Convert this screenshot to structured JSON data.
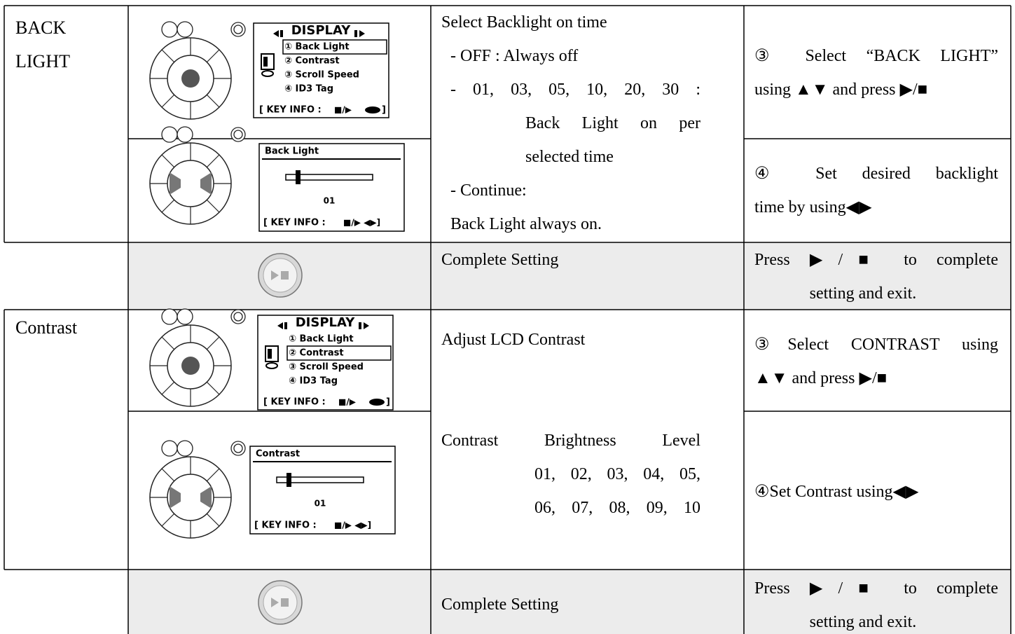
{
  "backlight": {
    "name": "BACK LIGHT",
    "menu_screen": {
      "title": "DISPLAY",
      "items": [
        "① Back Light",
        "② Contrast",
        "③ Scroll Speed",
        "④ ID3 Tag"
      ],
      "key_info": "[ KEY INFO :",
      "keys": "■/▶",
      "key_end": "]"
    },
    "slider_screen": {
      "title": "Back Light",
      "value": "01",
      "key_info": "[ KEY INFO :",
      "keys": "■/▶ ◀▶]"
    },
    "description": [
      "Select Backlight on time",
      "- OFF : Always off",
      "- 01, 03, 05, 10, 20, 30 :",
      "Back Light on per",
      "selected time",
      "- Continue:",
      "Back Light always on."
    ],
    "steps": [
      [
        "③ Select “BACK LIGHT”",
        "using ▲▼ and press ▶/■"
      ],
      [
        "④ Set desired backlight",
        "time by using◀▶"
      ]
    ]
  },
  "complete_1": {
    "description": "Complete Setting",
    "instruction": [
      "Press ▶/■ to complete",
      "setting and exit."
    ]
  },
  "contrast": {
    "name": "Contrast",
    "menu_screen": {
      "title": "DISPLAY",
      "items": [
        "① Back Light",
        "② Contrast",
        "③ Scroll Speed",
        "④ ID3 Tag"
      ],
      "key_info": "[ KEY INFO :",
      "keys": "■/▶",
      "key_end": "]"
    },
    "slider_screen": {
      "title": "Contrast",
      "value": "01",
      "key_info": "[ KEY INFO :",
      "keys": "■/▶ ◀▶]"
    },
    "description": [
      "Adjust LCD Contrast",
      "Contrast Brightness Level",
      "01, 02, 03, 04, 05,",
      "06, 07, 08, 09, 10"
    ],
    "steps": [
      [
        "③Select CONTRAST using",
        "▲▼ and press ▶/■"
      ],
      [
        "④Set Contrast using◀▶"
      ]
    ]
  },
  "complete_2": {
    "description": "Complete Setting",
    "instruction": [
      "Press ▶/■ to complete",
      "setting and exit."
    ]
  }
}
